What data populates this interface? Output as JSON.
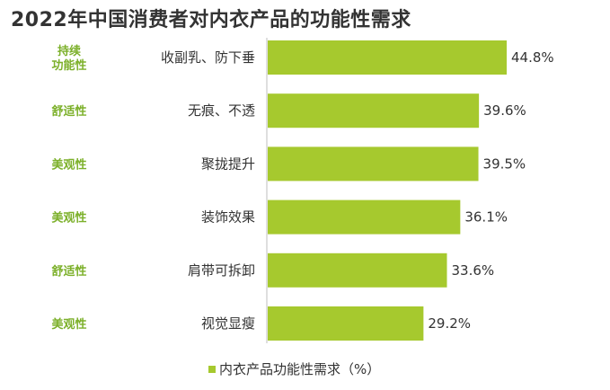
{
  "title": "2022年中国消费者对内衣产品的功能性需求",
  "chart_data": {
    "type": "bar",
    "orientation": "horizontal",
    "categories": [
      "收副乳、防下垂",
      "无痕、不透",
      "聚拢提升",
      "装饰效果",
      "肩带可拆卸",
      "视觉显瘦"
    ],
    "groups": [
      "持续\n功能性",
      "舒适性",
      "美观性",
      "美观性",
      "舒适性",
      "美观性"
    ],
    "series": [
      {
        "name": "内衣产品功能性需求（%）",
        "values": [
          44.8,
          39.6,
          39.5,
          36.1,
          33.6,
          29.2
        ]
      }
    ],
    "value_labels": [
      "44.8%",
      "39.6%",
      "39.5%",
      "36.1%",
      "33.6%",
      "29.2%"
    ],
    "xlim": [
      0,
      48
    ],
    "grid": false,
    "legend_position": "bottom"
  },
  "colors": {
    "bar": "#a6c92e",
    "group_label": "#7cb02a",
    "text": "#333333",
    "axis": "#bfbfbf"
  }
}
